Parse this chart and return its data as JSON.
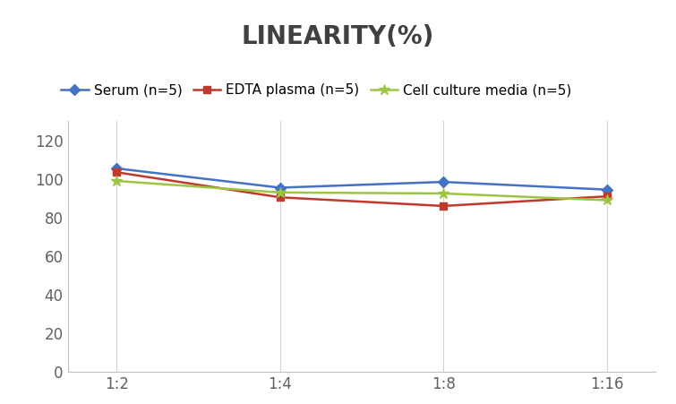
{
  "title": "LINEARITY(%)",
  "title_fontsize": 20,
  "title_fontweight": "bold",
  "x_labels": [
    "1:2",
    "1:4",
    "1:8",
    "1:16"
  ],
  "x_positions": [
    0,
    1,
    2,
    3
  ],
  "series": [
    {
      "label": "Serum (n=5)",
      "values": [
        105.5,
        95.5,
        98.5,
        94.5
      ],
      "color": "#4472C4",
      "marker": "D",
      "markersize": 6,
      "linewidth": 1.8
    },
    {
      "label": "EDTA plasma (n=5)",
      "values": [
        103.5,
        90.5,
        86.0,
        91.0
      ],
      "color": "#C0392B",
      "marker": "s",
      "markersize": 6,
      "linewidth": 1.8
    },
    {
      "label": "Cell culture media (n=5)",
      "values": [
        99.0,
        93.0,
        92.5,
        89.0
      ],
      "color": "#9DC544",
      "marker": "*",
      "markersize": 9,
      "linewidth": 1.8
    }
  ],
  "ylim": [
    0,
    130
  ],
  "yticks": [
    0,
    20,
    40,
    60,
    80,
    100,
    120
  ],
  "tick_fontsize": 12,
  "legend_fontsize": 11,
  "background_color": "#ffffff",
  "grid_color": "#d3d3d3",
  "spine_color": "#c0c0c0",
  "title_color": "#404040"
}
